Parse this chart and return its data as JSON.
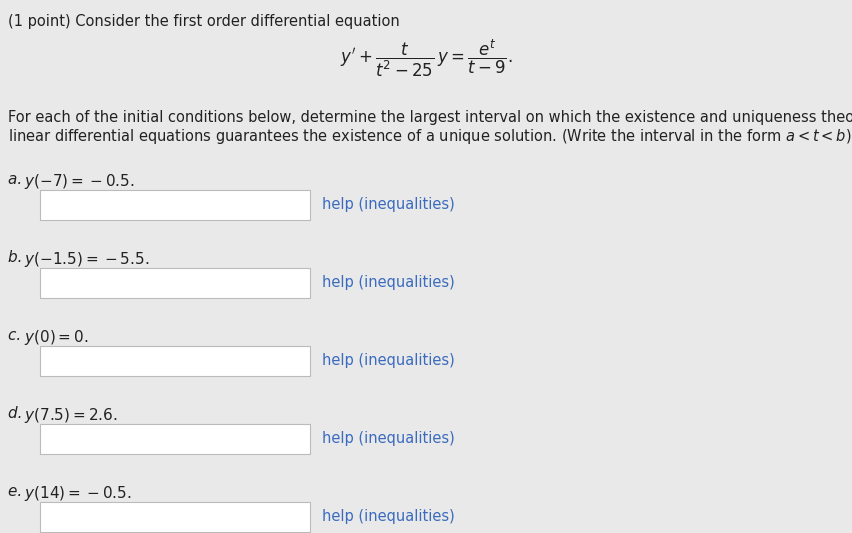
{
  "background_color": "#e9e9e9",
  "title_text": "(1 point) Consider the first order differential equation",
  "body_line1": "For each of the initial conditions below, determine the largest interval on which the existence and uniqueness theorem for first order",
  "body_line2": "linear differential equations guarantees the existence of a unique solution. (Write the interval in the form $a < t < b$)",
  "parts": [
    {
      "label": "a. ",
      "condition": "$y(-7) = -0.5.$"
    },
    {
      "label": "b. ",
      "condition": "$y(-1.5) = -5.5.$"
    },
    {
      "label": "c. ",
      "condition": "$y(0) = 0.$"
    },
    {
      "label": "d. ",
      "condition": "$y(7.5) = 2.6.$"
    },
    {
      "label": "e. ",
      "condition": "$y(14) = -0.5.$"
    }
  ],
  "help_text": "help (inequalities)",
  "help_color": "#3a6bbf",
  "box_color": "#ffffff",
  "box_edge_color": "#bbbbbb",
  "text_color": "#222222",
  "title_fontsize": 10.5,
  "body_fontsize": 10.5,
  "parts_fontsize": 11,
  "help_fontsize": 10.5,
  "eq_fontsize": 12
}
